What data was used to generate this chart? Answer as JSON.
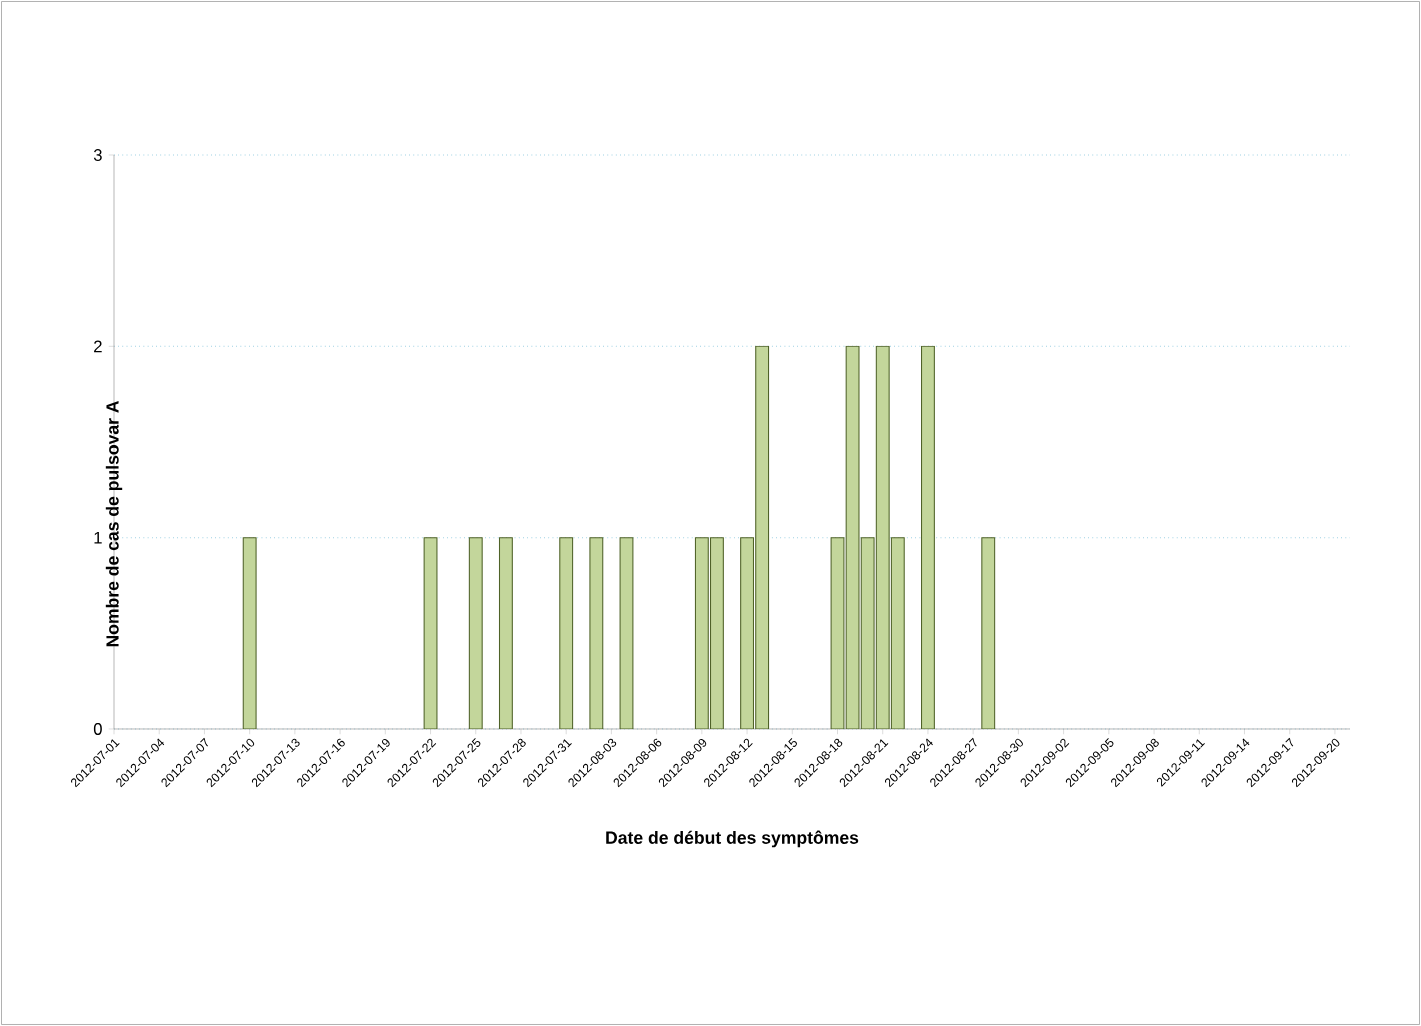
{
  "chart_data": {
    "type": "bar",
    "xlabel": "Date de début des symptômes",
    "ylabel": "Nombre de cas de pulsovar A",
    "x": [
      "2012-07-10",
      "2012-07-22",
      "2012-07-25",
      "2012-07-27",
      "2012-07-31",
      "2012-08-02",
      "2012-08-04",
      "2012-08-09",
      "2012-08-10",
      "2012-08-12",
      "2012-08-13",
      "2012-08-18",
      "2012-08-19",
      "2012-08-20",
      "2012-08-21",
      "2012-08-22",
      "2012-08-24",
      "2012-08-28"
    ],
    "values": [
      1,
      1,
      1,
      1,
      1,
      1,
      1,
      1,
      1,
      1,
      2,
      1,
      2,
      1,
      2,
      1,
      2,
      1
    ],
    "color": "#c3d69b",
    "xlim": [
      "2012-07-01",
      "2012-09-21"
    ],
    "xticks": [
      "2012-07-01",
      "2012-07-04",
      "2012-07-07",
      "2012-07-10",
      "2012-07-13",
      "2012-07-16",
      "2012-07-19",
      "2012-07-22",
      "2012-07-25",
      "2012-07-28",
      "2012-07-31",
      "2012-08-03",
      "2012-08-06",
      "2012-08-09",
      "2012-08-12",
      "2012-08-15",
      "2012-08-18",
      "2012-08-21",
      "2012-08-24",
      "2012-08-27",
      "2012-08-30",
      "2012-09-02",
      "2012-09-05",
      "2012-09-08",
      "2012-09-11",
      "2012-09-14",
      "2012-09-17",
      "2012-09-20"
    ],
    "ylim": [
      0,
      3
    ],
    "yticks": [
      0,
      1,
      2,
      3
    ],
    "grid": "y"
  }
}
